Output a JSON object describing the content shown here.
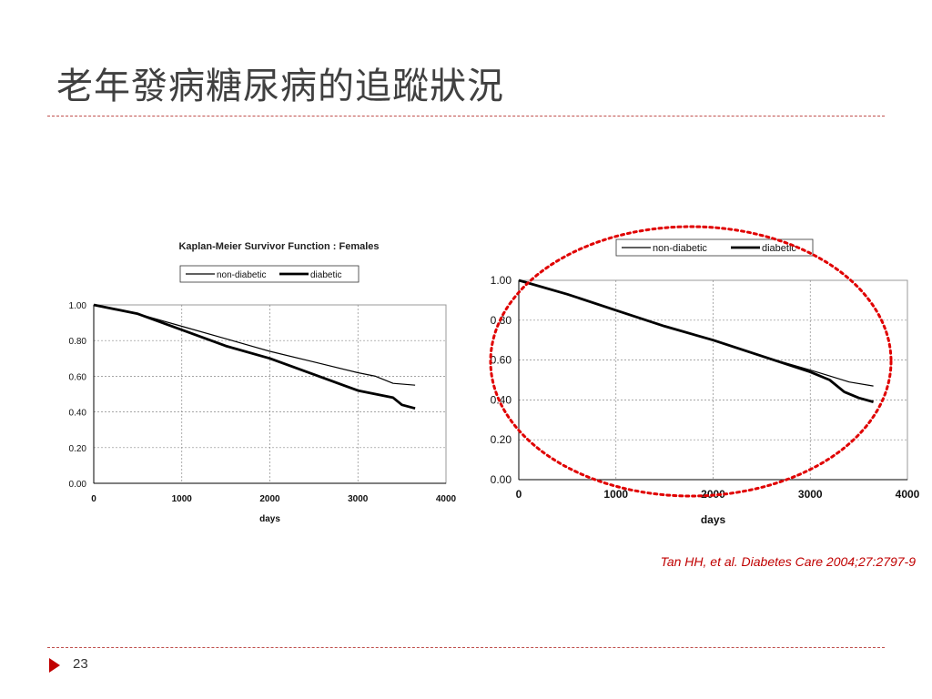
{
  "slide": {
    "title": "老年發病糖尿病的追蹤狀況",
    "citation": "Tan HH, et al. Diabetes Care 2004;27:2797-9",
    "page_number": "23",
    "accent_color": "#c00000"
  },
  "chart_data": [
    {
      "type": "line",
      "title": "Kaplan-Meier Survivor Function : Females",
      "xlabel": "days",
      "ylabel": "",
      "xlim": [
        0,
        4000
      ],
      "ylim": [
        0,
        1
      ],
      "x_ticks": [
        "0",
        "1000",
        "2000",
        "3000",
        "4000"
      ],
      "y_ticks": [
        "0.00",
        "0.20",
        "0.40",
        "0.60",
        "0.80",
        "1.00"
      ],
      "grid": true,
      "legend_position": "top",
      "series": [
        {
          "name": "non-diabetic",
          "x": [
            0,
            500,
            1000,
            1500,
            2000,
            2500,
            3000,
            3200,
            3400,
            3650
          ],
          "values": [
            1.0,
            0.95,
            0.88,
            0.81,
            0.74,
            0.68,
            0.62,
            0.6,
            0.56,
            0.55
          ]
        },
        {
          "name": "diabetic",
          "x": [
            0,
            500,
            1000,
            1500,
            2000,
            2500,
            3000,
            3200,
            3400,
            3500,
            3650
          ],
          "values": [
            1.0,
            0.95,
            0.86,
            0.77,
            0.7,
            0.61,
            0.52,
            0.5,
            0.48,
            0.44,
            0.42
          ]
        }
      ]
    },
    {
      "type": "line",
      "title": "",
      "xlabel": "days",
      "ylabel": "",
      "xlim": [
        0,
        4000
      ],
      "ylim": [
        0,
        1
      ],
      "x_ticks": [
        "0",
        "1000",
        "2000",
        "3000",
        "4000"
      ],
      "y_ticks": [
        "0.00",
        "0.20",
        "0.40",
        "0.60",
        "0.80",
        "1.00"
      ],
      "grid": true,
      "legend_position": "top",
      "series": [
        {
          "name": "non-diabetic",
          "x": [
            0,
            500,
            1000,
            1500,
            2000,
            2500,
            3000,
            3200,
            3400,
            3650
          ],
          "values": [
            1.0,
            0.93,
            0.85,
            0.77,
            0.7,
            0.62,
            0.55,
            0.52,
            0.49,
            0.47
          ]
        },
        {
          "name": "diabetic",
          "x": [
            0,
            500,
            1000,
            1500,
            2000,
            2500,
            3000,
            3200,
            3350,
            3500,
            3650
          ],
          "values": [
            1.0,
            0.93,
            0.85,
            0.77,
            0.7,
            0.62,
            0.54,
            0.5,
            0.44,
            0.41,
            0.39
          ]
        }
      ]
    }
  ]
}
